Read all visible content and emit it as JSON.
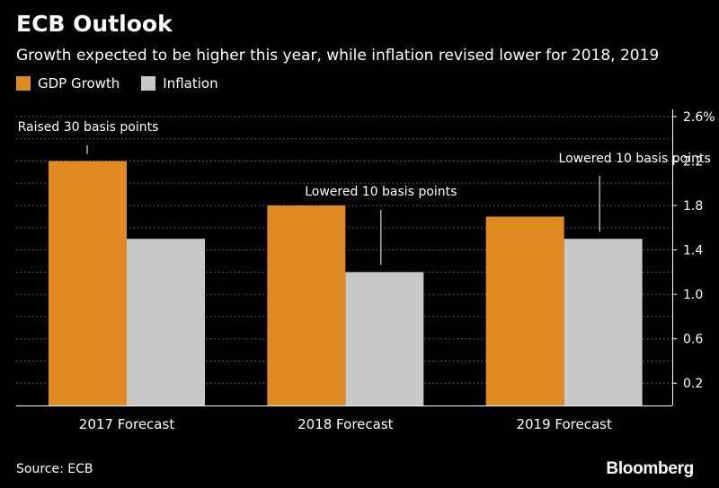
{
  "title": "ECB Outlook",
  "subtitle": "Growth expected to be higher this year, while inflation revised lower for 2018, 2019",
  "legend": [
    {
      "label": "GDP Growth",
      "color": "#e08b22"
    },
    {
      "label": "Inflation",
      "color": "#c8c8c8"
    }
  ],
  "source": "Source: ECB",
  "brand": "Bloomberg",
  "chart_data": {
    "type": "bar",
    "categories": [
      "2017 Forecast",
      "2018 Forecast",
      "2019 Forecast"
    ],
    "series": [
      {
        "name": "GDP Growth",
        "color": "#e08b22",
        "values": [
          2.2,
          1.8,
          1.7
        ]
      },
      {
        "name": "Inflation",
        "color": "#c8c8c8",
        "values": [
          1.5,
          1.2,
          1.5
        ]
      }
    ],
    "ylim": [
      0,
      2.6
    ],
    "yticks": [
      0.2,
      0.6,
      1.0,
      1.4,
      1.8,
      2.2,
      2.6
    ],
    "ytick_labels": [
      "0.2",
      "0.6",
      "1.0",
      "1.4",
      "1.8",
      "2.2",
      "2.6%"
    ],
    "ygrid_step": 0.2,
    "grid": true,
    "axis_side": "right",
    "annotations": [
      {
        "text": "Raised 30 basis points",
        "category_index": 0,
        "series_index": 0
      },
      {
        "text": "Lowered 10 basis points",
        "category_index": 1,
        "series_index": 1
      },
      {
        "text": "Lowered 10 basis points",
        "category_index": 2,
        "series_index": 1
      }
    ]
  }
}
